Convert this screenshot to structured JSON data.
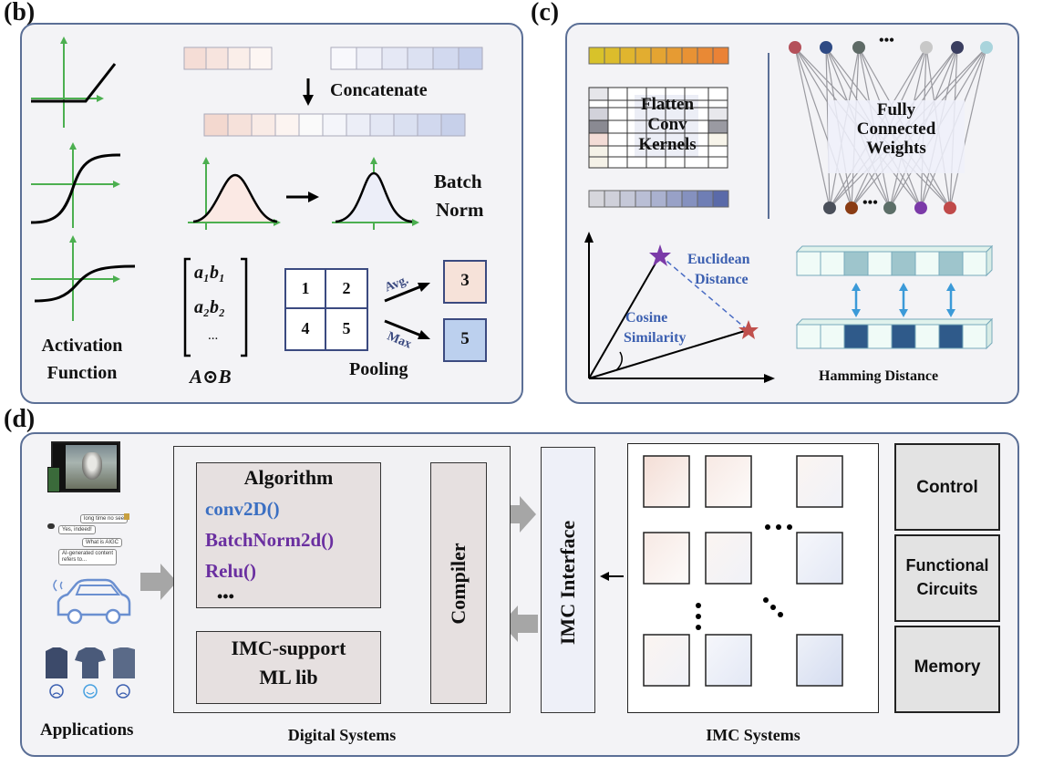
{
  "panel_b": {
    "label": "(b)",
    "activation_line1": "Activation",
    "activation_line2": "Function",
    "concatenate": "Concatenate",
    "batch_line1": "Batch",
    "batch_line2": "Norm",
    "matrix_row1": "a₁b₁",
    "matrix_row2": "a₂b₂",
    "matrix_dots": "...",
    "hadamard": "A⊙B",
    "pool_cells": [
      "1",
      "2",
      "4",
      "5"
    ],
    "avg_label": "Avg.",
    "max_label": "Max",
    "avg_result": "3",
    "max_result": "5",
    "pooling": "Pooling"
  },
  "panel_c": {
    "label": "(c)",
    "flatten_line1": "Flatten",
    "flatten_line2": "Conv",
    "flatten_line3": "Kernels",
    "fc_line1": "Fully",
    "fc_line2": "Connected",
    "fc_line3": "Weights",
    "fc_dots_top": "•••",
    "fc_dots_bottom": "•••",
    "euclid_line1": "Euclidean",
    "euclid_line2": "Distance",
    "cos_line1": "Cosine",
    "cos_line2": "Similarity",
    "hamming": "Hamming Distance"
  },
  "panel_d": {
    "label": "(d)",
    "chat1": "long time no see",
    "chat2": "Yes, indeed!",
    "chat3": "What is AIGC",
    "chat4_line1": "AI-generated content",
    "chat4_line2": "refers to...",
    "applications": "Applications",
    "algorithm_title": "Algorithm",
    "code1": "conv2D()",
    "code2": "BatchNorm2d()",
    "code3": "Relu()",
    "code_dots": "•••",
    "lib_line1": "IMC-support",
    "lib_line2": "ML lib",
    "compiler": "Compiler",
    "interface": "IMC Interface",
    "digital_systems": "Digital Systems",
    "imc_systems": "IMC Systems",
    "control": "Control",
    "functional_line1": "Functional",
    "functional_line2": "Circuits",
    "memory": "Memory",
    "code_colors": {
      "blue": "#3b6fc2",
      "purple": "#6a2fa0"
    }
  }
}
